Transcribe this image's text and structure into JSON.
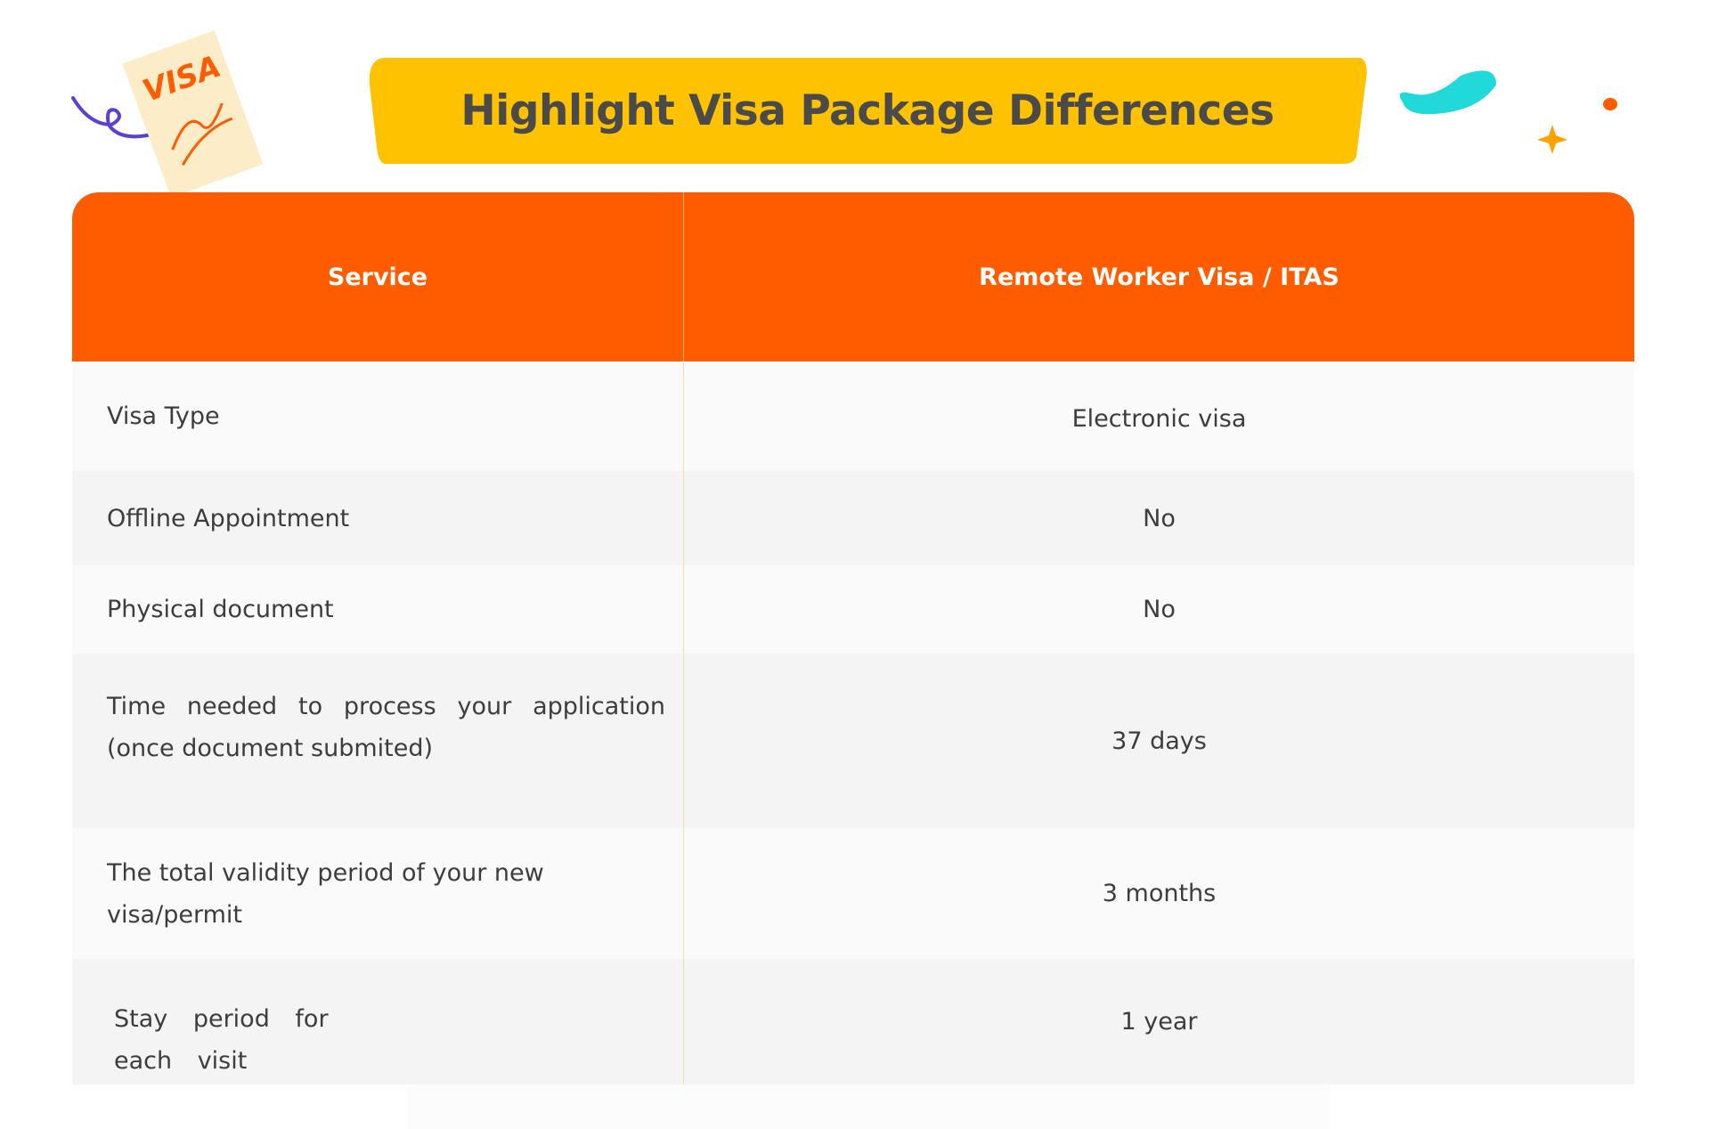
{
  "title": "Highlight Visa Package Differences",
  "decor": {
    "card_text": "VISA"
  },
  "colors": {
    "banner": "#ffc200",
    "header": "#ff5c00",
    "accent_teal": "#22d9d9",
    "accent_purple": "#5b3fd6"
  },
  "table": {
    "headers": [
      "Service",
      "Remote Worker Visa / ITAS"
    ],
    "rows": [
      {
        "service": "Visa Type",
        "value": "Electronic visa"
      },
      {
        "service": "Offline Appointment",
        "value": "No"
      },
      {
        "service": "Physical document",
        "value": "No"
      },
      {
        "service": "Time needed to process your application (once document submited)",
        "value": "37 days"
      },
      {
        "service": "The total validity period of your new visa/permit",
        "value": "3 months"
      },
      {
        "service": "Stay period for each visit",
        "value": "1 year"
      }
    ]
  }
}
